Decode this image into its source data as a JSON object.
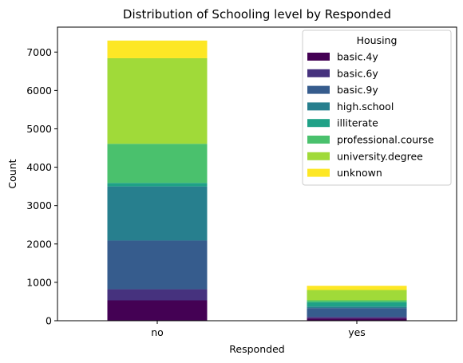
{
  "chart_data": {
    "type": "bar",
    "stacked": true,
    "title": "Distribution of Schooling level by Responded",
    "xlabel": "Responded",
    "ylabel": "Count",
    "categories": [
      "no",
      "yes"
    ],
    "ylim": [
      0,
      7650
    ],
    "yticks": [
      0,
      1000,
      2000,
      3000,
      4000,
      5000,
      6000,
      7000
    ],
    "grid": false,
    "legend": {
      "title": "Housing",
      "placement": "top-right"
    },
    "series": [
      {
        "name": "basic.4y",
        "color": "#440154",
        "values": [
          530,
          60
        ]
      },
      {
        "name": "basic.6y",
        "color": "#46327e",
        "values": [
          290,
          40
        ]
      },
      {
        "name": "basic.9y",
        "color": "#365c8d",
        "values": [
          1270,
          230
        ]
      },
      {
        "name": "high.school",
        "color": "#277f8e",
        "values": [
          1410,
          40
        ]
      },
      {
        "name": "illiterate",
        "color": "#1fa187",
        "values": [
          90,
          110
        ]
      },
      {
        "name": "professional.course",
        "color": "#4ac16d",
        "values": [
          1020,
          50
        ]
      },
      {
        "name": "university.degree",
        "color": "#a0da39",
        "values": [
          2230,
          270
        ]
      },
      {
        "name": "unknown",
        "color": "#fde725",
        "values": [
          460,
          110
        ]
      }
    ]
  }
}
